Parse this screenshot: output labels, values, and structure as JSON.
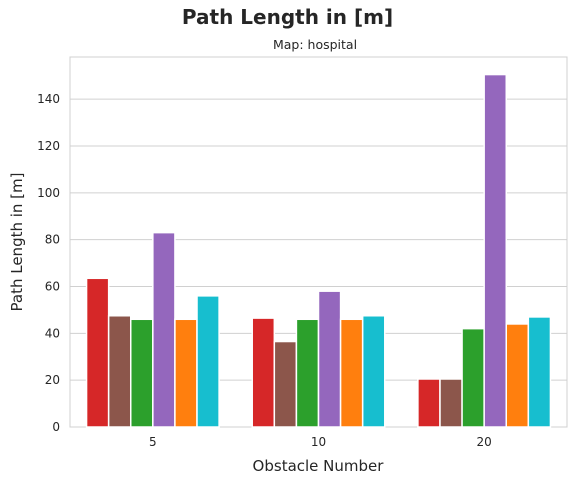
{
  "chart_data": {
    "type": "bar",
    "title": "Path Length in [m]",
    "subtitle": "Map: hospital",
    "xlabel": "Obstacle Number",
    "ylabel": "Path Length in [m]",
    "categories": [
      "5",
      "10",
      "20"
    ],
    "ylim": [
      0,
      158
    ],
    "yticks": [
      0,
      20,
      40,
      60,
      80,
      100,
      120,
      140
    ],
    "grid": "horizontal",
    "legend": "none",
    "series": [
      {
        "color": "#d62728",
        "values": [
          63.5,
          46.5,
          20.5
        ]
      },
      {
        "color": "#8c564b",
        "values": [
          47.5,
          36.5,
          20.5
        ]
      },
      {
        "color": "#2ca02c",
        "values": [
          46.0,
          46.0,
          42.0
        ]
      },
      {
        "color": "#9467bd",
        "values": [
          83.0,
          58.0,
          150.5
        ]
      },
      {
        "color": "#ff7f0e",
        "values": [
          46.0,
          46.0,
          44.0
        ]
      },
      {
        "color": "#17becf",
        "values": [
          56.0,
          47.5,
          47.0
        ]
      }
    ]
  }
}
